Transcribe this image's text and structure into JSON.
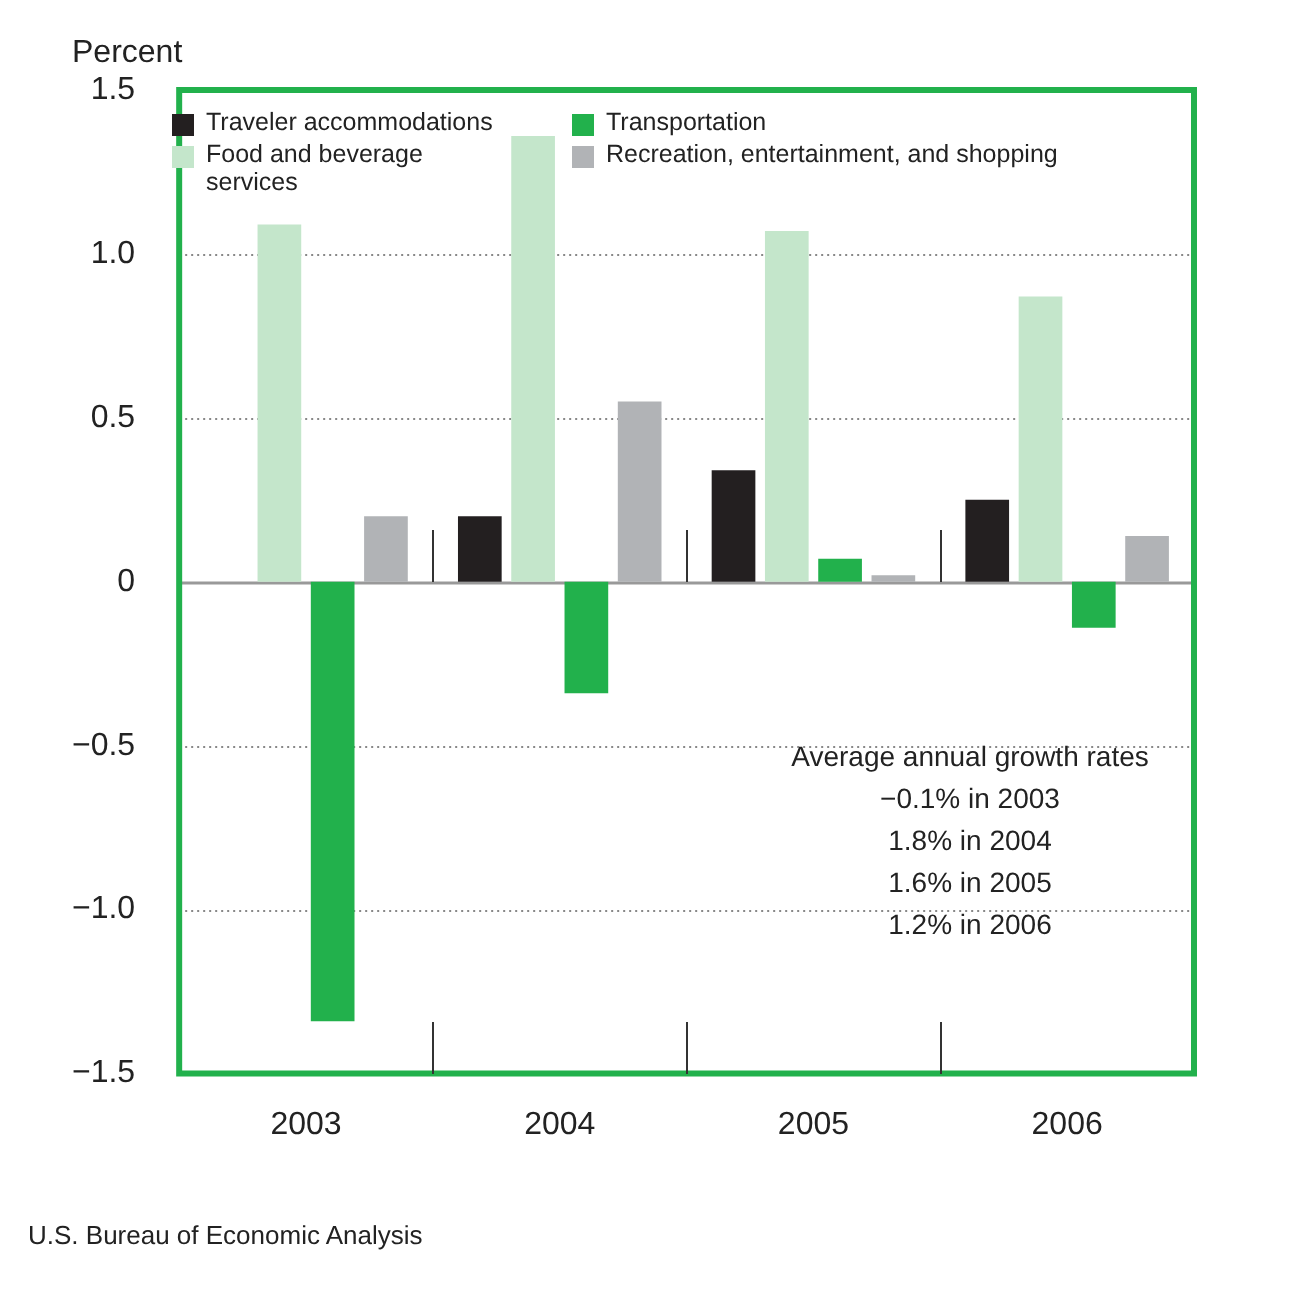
{
  "chart_data": {
    "type": "bar",
    "ylabel": "Percent",
    "categories": [
      "2003",
      "2004",
      "2005",
      "2006"
    ],
    "series": [
      {
        "name": "Traveler accommodations",
        "color": "#231f20",
        "values": [
          0,
          0.2,
          0.34,
          0.25
        ]
      },
      {
        "name": "Food and beverage services",
        "color": "#c4e6cb",
        "values": [
          1.09,
          1.36,
          1.07,
          0.87
        ]
      },
      {
        "name": "Transportation",
        "color": "#22b14c",
        "values": [
          -1.34,
          -0.34,
          0.07,
          -0.14
        ]
      },
      {
        "name": "Recreation, entertainment, and shopping",
        "color": "#b1b3b6",
        "values": [
          0.2,
          0.55,
          0.02,
          0.14
        ]
      }
    ],
    "ylim": [
      -1.5,
      1.5
    ],
    "yticks": [
      {
        "value": -1.5,
        "label": "−1.5"
      },
      {
        "value": -1,
        "label": "−1.0"
      },
      {
        "value": -0.5,
        "label": "−0.5"
      },
      0,
      0.5,
      {
        "value": 1,
        "label": "1.0"
      },
      1.5
    ],
    "grid": "y",
    "legend": "top left",
    "annotations": [
      "Average annual growth rates",
      "−0.1% in 2003",
      "1.8% in 2004",
      "1.6% in 2005",
      "1.2% in 2006",
      "U.S. Bureau of Economic Analysis"
    ]
  }
}
